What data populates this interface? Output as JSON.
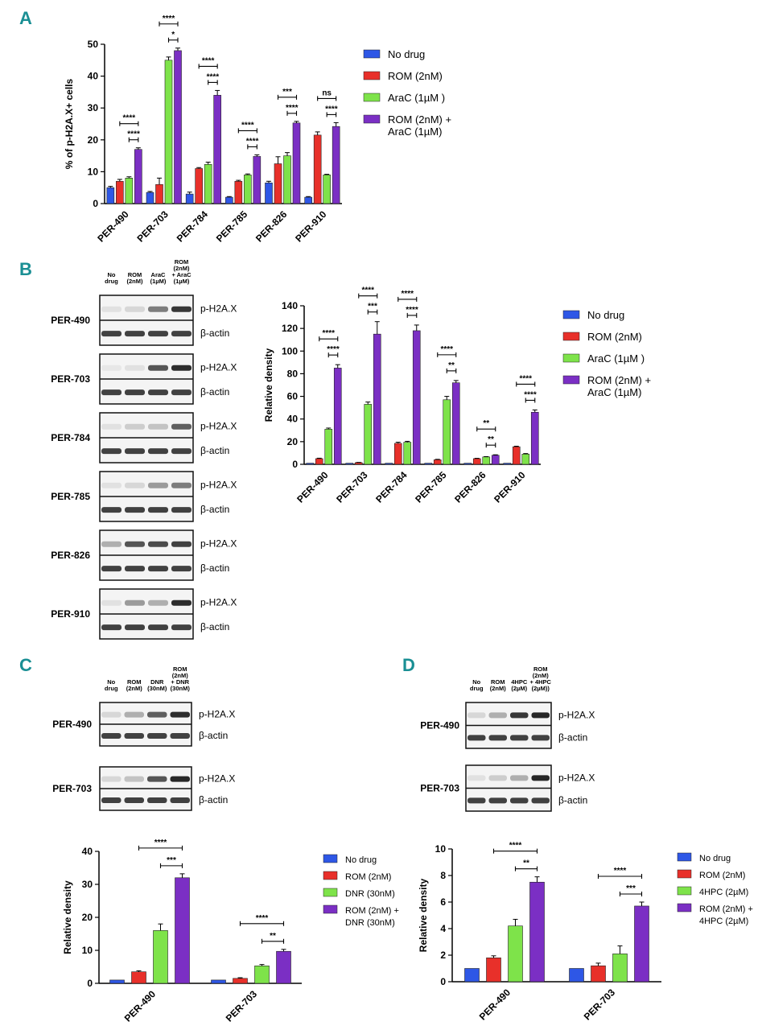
{
  "panels": {
    "A": "A",
    "B": "B",
    "C": "C",
    "D": "D"
  },
  "colors": {
    "no_drug": "#2e57e6",
    "rom": "#e8302a",
    "drug": "#7ee34a",
    "combo": "#7b2fc4"
  },
  "blot_labels": {
    "p_h2ax": "p-H2A.X",
    "beta_actin": "β-actin"
  },
  "blots_B": {
    "conditions": [
      [
        "No",
        "drug"
      ],
      [
        "ROM",
        "(2nM)"
      ],
      [
        "AraC",
        "(1µM)"
      ],
      [
        "ROM",
        "(2nM)",
        "+ AraC",
        "(1µM)"
      ]
    ],
    "cell_lines": [
      "PER-490",
      "PER-703",
      "PER-784",
      "PER-785",
      "PER-826",
      "PER-910"
    ]
  },
  "blots_C": {
    "conditions": [
      [
        "No",
        "drug"
      ],
      [
        "ROM",
        "(2nM)"
      ],
      [
        "DNR",
        "(30nM)"
      ],
      [
        "ROM",
        "(2nM)",
        "+ DNR",
        "(30nM)"
      ]
    ],
    "cell_lines": [
      "PER-490",
      "PER-703"
    ]
  },
  "blots_D": {
    "conditions": [
      [
        "No",
        "drug"
      ],
      [
        "ROM",
        "(2nM)"
      ],
      [
        "4HPC",
        "(2µM)"
      ],
      [
        "ROM",
        "(2nM)",
        "+ 4HPC",
        "(2µM))"
      ]
    ],
    "cell_lines": [
      "PER-490",
      "PER-703"
    ]
  },
  "chart_data": [
    {
      "id": "A",
      "type": "bar",
      "title": "",
      "xlabel": "",
      "ylabel": "% of p-H2A.X+ cells",
      "ylim": [
        0,
        50
      ],
      "yticks": [
        0,
        10,
        20,
        30,
        40,
        50
      ],
      "categories": [
        "PER-490",
        "PER-703",
        "PER-784",
        "PER-785",
        "PER-826",
        "PER-910"
      ],
      "series": [
        {
          "name": "No drug",
          "values": [
            5,
            3.5,
            3,
            2,
            6.5,
            2
          ],
          "errors": [
            0.4,
            0.3,
            0.6,
            0.2,
            0.5,
            0.2
          ]
        },
        {
          "name": "ROM (2nM)",
          "values": [
            7,
            6,
            11,
            7,
            12.5,
            21.5
          ],
          "errors": [
            0.6,
            2,
            0.3,
            0.3,
            2.2,
            1
          ]
        },
        {
          "name": "AraC (1µM )",
          "values": [
            8,
            45,
            12.3,
            9,
            15,
            9
          ],
          "errors": [
            0.4,
            1,
            0.7,
            0.3,
            1,
            0.2
          ]
        },
        {
          "name": "ROM (2nM) + AraC (1µM)",
          "values": [
            17,
            48,
            34,
            14.8,
            25.3,
            24.2
          ],
          "errors": [
            0.5,
            0.8,
            1.5,
            0.5,
            0.5,
            1.2
          ]
        }
      ],
      "significance": [
        {
          "category": "PER-490",
          "outer": "****",
          "inner": "****"
        },
        {
          "category": "PER-703",
          "outer": "****",
          "inner": "*"
        },
        {
          "category": "PER-784",
          "outer": "****",
          "inner": "****"
        },
        {
          "category": "PER-785",
          "outer": "****",
          "inner": "****"
        },
        {
          "category": "PER-826",
          "outer": "***",
          "inner": "****"
        },
        {
          "category": "PER-910",
          "outer": "ns",
          "inner": "****"
        }
      ]
    },
    {
      "id": "B",
      "type": "bar",
      "title": "",
      "xlabel": "",
      "ylabel": "Relative density",
      "ylim": [
        0,
        140
      ],
      "yticks": [
        0,
        20,
        40,
        60,
        80,
        100,
        120,
        140
      ],
      "categories": [
        "PER-490",
        "PER-703",
        "PER-784",
        "PER-785",
        "PER-826",
        "PER-910"
      ],
      "series": [
        {
          "name": "No drug",
          "values": [
            1,
            1,
            1,
            1,
            1,
            1
          ],
          "errors": [
            0,
            0,
            0,
            0,
            0,
            0
          ]
        },
        {
          "name": "ROM (2nM)",
          "values": [
            5,
            1.5,
            18.5,
            4,
            5,
            15.5
          ],
          "errors": [
            0.4,
            0.2,
            1,
            0.4,
            0.3,
            0.5
          ]
        },
        {
          "name": "AraC (1µM )",
          "values": [
            31,
            53,
            19.5,
            57,
            6.5,
            9
          ],
          "errors": [
            1,
            2,
            0.8,
            3,
            0.3,
            0.5
          ]
        },
        {
          "name": "ROM (2nM) + AraC (1µM)",
          "values": [
            85,
            115,
            118,
            72,
            8,
            46
          ],
          "errors": [
            3,
            11,
            5,
            2,
            0.4,
            2
          ]
        }
      ],
      "significance": [
        {
          "category": "PER-490",
          "outer": "****",
          "inner": "****"
        },
        {
          "category": "PER-703",
          "outer": "****",
          "inner": "***"
        },
        {
          "category": "PER-784",
          "outer": "****",
          "inner": "****"
        },
        {
          "category": "PER-785",
          "outer": "****",
          "inner": "**"
        },
        {
          "category": "PER-826",
          "outer": "**",
          "inner": "**"
        },
        {
          "category": "PER-910",
          "outer": "****",
          "inner": "****"
        }
      ]
    },
    {
      "id": "C",
      "type": "bar",
      "title": "",
      "xlabel": "",
      "ylabel": "Relative density",
      "ylim": [
        0,
        40
      ],
      "yticks": [
        0,
        10,
        20,
        30,
        40
      ],
      "categories": [
        "PER-490",
        "PER-703"
      ],
      "series": [
        {
          "name": "No drug",
          "values": [
            1,
            1
          ],
          "errors": [
            0,
            0
          ]
        },
        {
          "name": "ROM (2nM)",
          "values": [
            3.5,
            1.5
          ],
          "errors": [
            0.3,
            0.2
          ]
        },
        {
          "name": "DNR (30nM)",
          "values": [
            16,
            5.3
          ],
          "errors": [
            2,
            0.4
          ]
        },
        {
          "name": "ROM (2nM) + DNR (30nM)",
          "values": [
            32,
            9.7
          ],
          "errors": [
            1.2,
            0.6
          ]
        }
      ],
      "significance": [
        {
          "category": "PER-490",
          "outer": "****",
          "inner": "***"
        },
        {
          "category": "PER-703",
          "outer": "****",
          "inner": "**"
        }
      ]
    },
    {
      "id": "D",
      "type": "bar",
      "title": "",
      "xlabel": "",
      "ylabel": "Relative density",
      "ylim": [
        0,
        10
      ],
      "yticks": [
        0,
        2,
        4,
        6,
        8,
        10
      ],
      "categories": [
        "PER-490",
        "PER-703"
      ],
      "series": [
        {
          "name": "No drug",
          "values": [
            1,
            1
          ],
          "errors": [
            0,
            0
          ]
        },
        {
          "name": "ROM (2nM)",
          "values": [
            1.8,
            1.2
          ],
          "errors": [
            0.15,
            0.2
          ]
        },
        {
          "name": "4HPC (2µM)",
          "values": [
            4.2,
            2.1
          ],
          "errors": [
            0.5,
            0.6
          ]
        },
        {
          "name": "ROM (2nM) + 4HPC (2µM)",
          "values": [
            7.5,
            5.7
          ],
          "errors": [
            0.4,
            0.3
          ]
        }
      ],
      "significance": [
        {
          "category": "PER-490",
          "outer": "****",
          "inner": "**"
        },
        {
          "category": "PER-703",
          "outer": "****",
          "inner": "***"
        }
      ]
    }
  ],
  "legends": {
    "A": [
      [
        "No drug"
      ],
      [
        "ROM (2nM)"
      ],
      [
        "AraC (1µM )"
      ],
      [
        "ROM (2nM) +",
        "AraC (1µM)"
      ]
    ],
    "B": [
      [
        "No drug"
      ],
      [
        "ROM (2nM)"
      ],
      [
        "AraC (1µM )"
      ],
      [
        "ROM (2nM) +",
        "AraC (1µM)"
      ]
    ],
    "C": [
      [
        "No drug"
      ],
      [
        "ROM (2nM)"
      ],
      [
        "DNR (30nM)"
      ],
      [
        "ROM (2nM) +",
        "DNR (30nM)"
      ]
    ],
    "D": [
      [
        "No drug"
      ],
      [
        "ROM (2nM)"
      ],
      [
        "4HPC (2µM)"
      ],
      [
        "ROM (2nM) +",
        "4HPC (2µM)"
      ]
    ]
  }
}
